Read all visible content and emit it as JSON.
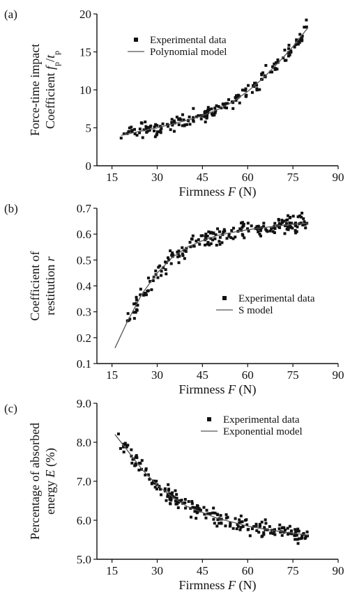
{
  "chart_data": [
    {
      "type": "scatter",
      "panel_label": "(a)",
      "xlabel": "Firmness F (N)",
      "ylabel_line1": "Force-time impact",
      "ylabel_line2": "Coefficient fp/tp",
      "xlim": [
        10,
        90
      ],
      "ylim": [
        0,
        20
      ],
      "x_ticks": [
        "15",
        "30",
        "45",
        "60",
        "75",
        "90"
      ],
      "y_ticks": [
        "0",
        "5",
        "10",
        "15",
        "20"
      ],
      "legend": [
        "Experimental data",
        "Polynomial model"
      ],
      "legend_placement": "top-center",
      "series": [
        {
          "name": "Experimental data",
          "kind": "points",
          "x_range": [
            18,
            80
          ],
          "count": 200,
          "noise": 0.7
        },
        {
          "name": "Polynomial model",
          "kind": "line",
          "x": [
            18,
            25,
            30,
            35,
            40,
            45,
            50,
            55,
            60,
            65,
            70,
            75,
            80
          ],
          "y": [
            4.0,
            4.6,
            5.0,
            5.5,
            6.0,
            6.6,
            7.4,
            8.4,
            9.8,
            11.5,
            13.5,
            15.7,
            18.2
          ]
        }
      ]
    },
    {
      "type": "scatter",
      "panel_label": "(b)",
      "xlabel": "Firmness F (N)",
      "ylabel_line1": "Coefficient of",
      "ylabel_line2": "restitution r",
      "xlim": [
        10,
        90
      ],
      "ylim": [
        0.1,
        0.7
      ],
      "x_ticks": [
        "15",
        "30",
        "45",
        "60",
        "75",
        "90"
      ],
      "y_ticks": [
        "0.1",
        "0.2",
        "0.3",
        "0.4",
        "0.5",
        "0.6",
        "0.7"
      ],
      "legend": [
        "Experimental data",
        "S model"
      ],
      "legend_placement": "center-right",
      "series": [
        {
          "name": "Experimental data",
          "kind": "points",
          "x_range": [
            20,
            80
          ],
          "count": 200,
          "noise": 0.025
        },
        {
          "name": "S model",
          "kind": "line",
          "x": [
            16,
            20,
            25,
            30,
            35,
            40,
            45,
            50,
            55,
            60,
            65,
            70,
            75,
            80
          ],
          "y": [
            0.16,
            0.26,
            0.37,
            0.45,
            0.51,
            0.55,
            0.575,
            0.595,
            0.607,
            0.617,
            0.625,
            0.632,
            0.638,
            0.642
          ]
        }
      ]
    },
    {
      "type": "scatter",
      "panel_label": "(c)",
      "xlabel": "Firmness F (N)",
      "ylabel_line1": "Percentage of absorbed",
      "ylabel_line2": "energy E (%)",
      "xlim": [
        10,
        90
      ],
      "ylim": [
        5.0,
        9.0
      ],
      "x_ticks": [
        "15",
        "30",
        "45",
        "60",
        "75",
        "90"
      ],
      "y_ticks": [
        "5.0",
        "6.0",
        "7.0",
        "8.0",
        "9.0"
      ],
      "legend": [
        "Experimental data",
        "Exponential model"
      ],
      "legend_placement": "top-right",
      "series": [
        {
          "name": "Experimental data",
          "kind": "points",
          "x_range": [
            17,
            80
          ],
          "count": 220,
          "noise": 0.15
        },
        {
          "name": "Exponential model",
          "kind": "line",
          "x": [
            16,
            20,
            25,
            30,
            35,
            40,
            45,
            50,
            55,
            60,
            65,
            70,
            75,
            80
          ],
          "y": [
            8.2,
            7.8,
            7.3,
            6.9,
            6.6,
            6.35,
            6.2,
            6.05,
            5.95,
            5.85,
            5.78,
            5.72,
            5.67,
            5.62
          ]
        }
      ]
    }
  ]
}
